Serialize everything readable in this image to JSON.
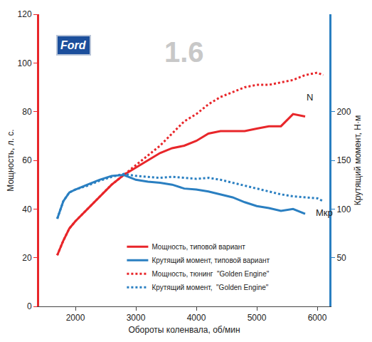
{
  "chart_data": {
    "type": "line",
    "brand": "Ford",
    "model_label": "1.6",
    "x_label": "Обороты коленвала, об/мин",
    "y_label": "Мощность, л. с.",
    "y2_label": "Крутящий момент, Н·м",
    "xlim": [
      1400,
      6200
    ],
    "xticks": [
      2000,
      3000,
      4000,
      5000,
      6000
    ],
    "ylim": [
      0,
      120
    ],
    "yticks": [
      0,
      20,
      40,
      60,
      80,
      100,
      120
    ],
    "y2lim": [
      0,
      300
    ],
    "y2ticks": [
      50,
      100,
      150,
      200
    ],
    "grid": false,
    "legend": "bottom",
    "series": [
      {
        "name": "Мощность, типовой вариант",
        "color": "#e8262a",
        "line_style": "solid",
        "axis": "y",
        "x": [
          1700,
          1800,
          1900,
          2000,
          2200,
          2400,
          2600,
          2800,
          3000,
          3200,
          3400,
          3600,
          3800,
          4000,
          4200,
          4400,
          4600,
          4800,
          5000,
          5200,
          5400,
          5600,
          5800
        ],
        "values": [
          21,
          27,
          32,
          35,
          40,
          45,
          50,
          54,
          57,
          60,
          63,
          65,
          66,
          68,
          71,
          72,
          72,
          72,
          73,
          74,
          74,
          79,
          78
        ]
      },
      {
        "name": "Крутящий момент, типовой вариант",
        "color": "#2a7fc1",
        "line_style": "solid",
        "axis": "y2",
        "x": [
          1700,
          1800,
          1900,
          2000,
          2200,
          2400,
          2600,
          2800,
          3000,
          3200,
          3400,
          3600,
          3800,
          4000,
          4200,
          4400,
          4600,
          4800,
          5000,
          5200,
          5400,
          5600,
          5800
        ],
        "values": [
          90,
          108,
          117,
          120,
          125,
          130,
          134,
          135,
          130,
          128,
          127,
          125,
          121,
          120,
          118,
          115,
          112,
          107,
          103,
          101,
          98,
          100,
          95
        ]
      },
      {
        "name": "Мощность, тюнинг  \"Golden Engine\"",
        "color": "#e8262a",
        "line_style": "dot",
        "axis": "y",
        "x": [
          1700,
          1800,
          1900,
          2000,
          2200,
          2400,
          2600,
          2800,
          3000,
          3200,
          3400,
          3600,
          3800,
          4000,
          4200,
          4400,
          4600,
          4800,
          5000,
          5200,
          5400,
          5600,
          5800,
          6000,
          6100
        ],
        "values": [
          21,
          27,
          32,
          35,
          40,
          45,
          50,
          54,
          58,
          62,
          66,
          71,
          76,
          79,
          83,
          86,
          88,
          90,
          91,
          91,
          92,
          93,
          95,
          96,
          95
        ]
      },
      {
        "name": "Крутящий момент,  \"Golden Engine\"",
        "color": "#2a7fc1",
        "line_style": "dot",
        "axis": "y2",
        "x": [
          1700,
          1800,
          1900,
          2000,
          2200,
          2400,
          2600,
          2800,
          3000,
          3200,
          3400,
          3600,
          3800,
          4000,
          4200,
          4400,
          4600,
          4800,
          5000,
          5200,
          5400,
          5600,
          5800,
          6000,
          6100
        ],
        "values": [
          90,
          108,
          117,
          120,
          124,
          129,
          133,
          136,
          134,
          133,
          132,
          133,
          132,
          131,
          132,
          130,
          127,
          124,
          121,
          118,
          115,
          113,
          112,
          111,
          108
        ]
      }
    ],
    "annotations": [
      {
        "text": "N",
        "x": 5800,
        "y": 86,
        "axis": "y"
      },
      {
        "text": "Mкр",
        "x": 5950,
        "y": 96,
        "axis": "y2"
      }
    ]
  }
}
